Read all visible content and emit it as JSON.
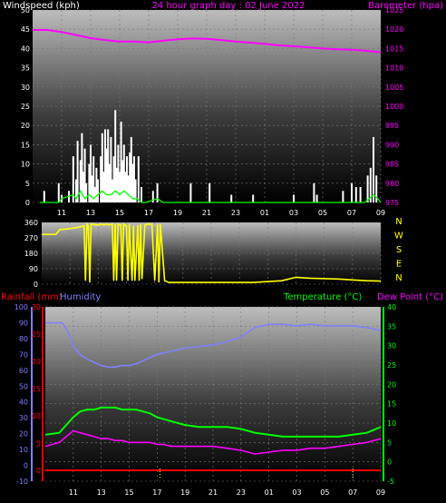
{
  "header": {
    "left_label": "Windspeed (kph)",
    "title": "24 hour graph day : 02 June 2022",
    "right_label": "Barometer (hpa)"
  },
  "colors": {
    "wind": "#ffffff",
    "gust": "#00ff00",
    "barometer": "#ff00ff",
    "direction": "#ffff00",
    "humidity": "#8080ff",
    "temperature": "#00ff00",
    "dewpoint": "#ff00ff",
    "rain": "#ff0000",
    "title": "#ff00ff",
    "axis_text": "#ffffff"
  },
  "chart_data": [
    {
      "type": "bar",
      "id": "wind-barometer",
      "title": "24 hour graph day : 02 June 2022",
      "ylabel": "Windspeed (kph)",
      "y2label": "Barometer (hpa)",
      "ylim": [
        0,
        50
      ],
      "y2lim": [
        975,
        1025
      ],
      "y_ticks": [
        "0",
        "5",
        "10",
        "15",
        "20",
        "25",
        "30",
        "35",
        "40",
        "45",
        "50"
      ],
      "y2_ticks": [
        "975",
        "980",
        "985",
        "990",
        "995",
        "1000",
        "1005",
        "1010",
        "1015",
        "1020",
        "1025"
      ],
      "x_ticks": [
        "11",
        "13",
        "15",
        "17",
        "19",
        "21",
        "23",
        "01",
        "03",
        "05",
        "07",
        "09"
      ],
      "grid": true,
      "wind_bars": [
        [
          9.8,
          3
        ],
        [
          10.8,
          5
        ],
        [
          11.0,
          2
        ],
        [
          11.5,
          3
        ],
        [
          11.8,
          12
        ],
        [
          12.0,
          6
        ],
        [
          12.1,
          16
        ],
        [
          12.3,
          11
        ],
        [
          12.4,
          18
        ],
        [
          12.5,
          8
        ],
        [
          12.6,
          14
        ],
        [
          12.7,
          5
        ],
        [
          12.9,
          10
        ],
        [
          13.0,
          15
        ],
        [
          13.1,
          7
        ],
        [
          13.2,
          12
        ],
        [
          13.3,
          4
        ],
        [
          13.4,
          9
        ],
        [
          13.5,
          6
        ],
        [
          13.7,
          12
        ],
        [
          13.8,
          18
        ],
        [
          13.9,
          8
        ],
        [
          14.0,
          19
        ],
        [
          14.1,
          14
        ],
        [
          14.2,
          19
        ],
        [
          14.3,
          10
        ],
        [
          14.4,
          17
        ],
        [
          14.5,
          6
        ],
        [
          14.6,
          12
        ],
        [
          14.7,
          24
        ],
        [
          14.8,
          9
        ],
        [
          14.9,
          15
        ],
        [
          15.0,
          8
        ],
        [
          15.1,
          21
        ],
        [
          15.2,
          11
        ],
        [
          15.3,
          15
        ],
        [
          15.4,
          8
        ],
        [
          15.5,
          12
        ],
        [
          15.6,
          7
        ],
        [
          15.7,
          13
        ],
        [
          15.8,
          17
        ],
        [
          15.9,
          10
        ],
        [
          16.0,
          12
        ],
        [
          16.1,
          6
        ],
        [
          16.3,
          12
        ],
        [
          16.5,
          4
        ],
        [
          17.3,
          3
        ],
        [
          17.6,
          5
        ],
        [
          19.9,
          5
        ],
        [
          21.2,
          5
        ],
        [
          22.7,
          2
        ],
        [
          24.2,
          2
        ],
        [
          27.0,
          2
        ],
        [
          28.4,
          5
        ],
        [
          28.6,
          2
        ],
        [
          30.4,
          3
        ],
        [
          31.0,
          5
        ],
        [
          31.3,
          4
        ],
        [
          31.6,
          4
        ],
        [
          32.1,
          7
        ],
        [
          32.3,
          9
        ],
        [
          32.5,
          17
        ],
        [
          32.7,
          7
        ]
      ],
      "gust_line": {
        "x": [
          9.5,
          10.8,
          11.0,
          11.8,
          12.0,
          12.3,
          12.6,
          12.9,
          13.2,
          13.5,
          13.8,
          14.1,
          14.4,
          14.7,
          15.0,
          15.3,
          15.6,
          15.9,
          16.2,
          16.5,
          16.8,
          17.6,
          18.0,
          31.9,
          32.2,
          32.5,
          32.8,
          33.0
        ],
        "y": [
          0,
          0,
          1,
          2,
          1,
          3,
          1,
          2,
          1,
          2,
          3,
          2,
          2,
          3,
          2,
          3,
          2,
          1,
          1,
          0,
          0,
          1,
          0,
          0,
          1,
          2,
          1,
          0
        ]
      },
      "barometer_line": {
        "x": [
          9.0,
          10.0,
          11.0,
          12.0,
          13.0,
          14.0,
          15.0,
          16.0,
          17.0,
          18.0,
          19.0,
          20.0,
          21.0,
          22.0,
          23.0,
          24.0,
          25.0,
          26.0,
          27.0,
          28.0,
          29.0,
          30.0,
          31.0,
          32.0,
          33.0
        ],
        "y": [
          1019.8,
          1019.8,
          1019.3,
          1018.5,
          1017.7,
          1017.2,
          1016.8,
          1016.8,
          1016.6,
          1017.0,
          1017.4,
          1017.6,
          1017.5,
          1017.2,
          1016.8,
          1016.5,
          1016.2,
          1015.8,
          1015.6,
          1015.3,
          1015.0,
          1014.8,
          1014.7,
          1014.4,
          1014.0
        ]
      }
    },
    {
      "type": "line",
      "id": "wind-direction",
      "y_ticks": [
        "0",
        "90",
        "180",
        "270",
        "360"
      ],
      "ylim": [
        0,
        360
      ],
      "y2_ticks": [
        "N",
        "W",
        "S",
        "E",
        "N"
      ],
      "x_ticks": [
        "11",
        "13",
        "15",
        "17",
        "19",
        "21",
        "23",
        "01",
        "03",
        "05",
        "07",
        "09"
      ],
      "grid": true,
      "direction_line": {
        "x": [
          9.0,
          10.0,
          10.3,
          10.6,
          11.5,
          12.0,
          12.1,
          12.2,
          12.3,
          12.4,
          12.5,
          12.6,
          12.8,
          13.0,
          13.2,
          13.4,
          13.6,
          13.8,
          14.0,
          14.1,
          14.2,
          14.3,
          14.4,
          14.6,
          14.7,
          14.8,
          15.0,
          15.1,
          15.2,
          15.4,
          15.5,
          15.6,
          15.8,
          15.9,
          16.0,
          16.1,
          16.3,
          16.5,
          16.8,
          17.0,
          17.2,
          17.3,
          17.4,
          17.7,
          18.0,
          20.0,
          22.0,
          24.0,
          26.0,
          27.0,
          28.0,
          30.0,
          31.0,
          32.0,
          33.0
        ],
        "y": [
          290,
          290,
          320,
          320,
          330,
          340,
          20,
          350,
          340,
          10,
          350,
          350,
          345,
          345,
          350,
          345,
          350,
          345,
          350,
          20,
          350,
          20,
          350,
          345,
          20,
          350,
          340,
          20,
          350,
          20,
          340,
          20,
          345,
          20,
          350,
          30,
          345,
          350,
          350,
          20,
          350,
          10,
          350,
          20,
          10,
          10,
          10,
          10,
          20,
          40,
          35,
          30,
          25,
          20,
          18
        ]
      }
    },
    {
      "type": "line",
      "id": "temp-humidity",
      "left_label": "Rainfall (mm)",
      "left2_label": "Humidity",
      "right_label": "Temperature (°C)",
      "right2_label": "Dew Point (°C)",
      "humidity_ticks": [
        "-10",
        "0",
        "10",
        "20",
        "30",
        "40",
        "50",
        "60",
        "70",
        "80",
        "90",
        "100"
      ],
      "humidity_lim": [
        -10,
        100
      ],
      "rain_ticks": [
        "0",
        "5",
        "10",
        "15",
        "20",
        "25",
        "30"
      ],
      "rain_lim": [
        -2,
        30
      ],
      "temp_ticks": [
        "-5",
        "0",
        "5",
        "10",
        "15",
        "20",
        "25",
        "30",
        "35",
        "40"
      ],
      "temp_lim": [
        -5,
        40
      ],
      "x_ticks": [
        "11",
        "13",
        "15",
        "17",
        "19",
        "21",
        "23",
        "01",
        "03",
        "05",
        "07",
        "09"
      ],
      "grid": true,
      "humidity_line": {
        "x": [
          9.0,
          10.2,
          10.6,
          11.0,
          11.5,
          12.0,
          12.5,
          13.0,
          13.5,
          14.0,
          14.5,
          15.0,
          15.5,
          16.0,
          16.5,
          17.0,
          17.5,
          18.0,
          19.0,
          20.0,
          21.0,
          22.0,
          23.0,
          24.0,
          25.0,
          26.0,
          27.0,
          28.0,
          29.0,
          30.0,
          31.0,
          32.0,
          33.0
        ],
        "y": [
          90,
          90,
          85,
          75,
          70,
          67,
          65,
          63,
          62,
          62,
          63,
          63,
          64,
          66,
          68,
          70,
          71,
          72,
          74,
          75,
          76,
          78,
          81,
          87,
          89,
          89,
          88,
          89,
          88,
          88,
          88,
          87,
          85
        ]
      },
      "temperature_line": {
        "x": [
          9.0,
          10.0,
          10.5,
          11.0,
          11.5,
          12.0,
          12.5,
          13.0,
          13.5,
          14.0,
          14.5,
          15.0,
          15.5,
          16.0,
          16.5,
          17.0,
          17.5,
          18.0,
          19.0,
          20.0,
          21.0,
          22.0,
          23.0,
          24.0,
          25.0,
          26.0,
          27.0,
          28.0,
          29.0,
          30.0,
          31.0,
          32.0,
          33.0
        ],
        "y": [
          7,
          7.5,
          9.5,
          11.5,
          13,
          13.5,
          13.5,
          14,
          14,
          14,
          13.5,
          13.5,
          13.5,
          13,
          12.5,
          11.5,
          11,
          10.5,
          9.5,
          9,
          9,
          9,
          8.5,
          7.5,
          7,
          6.5,
          6.5,
          6.5,
          6.5,
          6.5,
          7,
          7.5,
          9
        ]
      },
      "dewpoint_line": {
        "x": [
          9.0,
          10.0,
          10.5,
          11.0,
          11.5,
          12.0,
          12.5,
          13.0,
          13.5,
          14.0,
          14.5,
          15.0,
          15.5,
          16.0,
          16.5,
          17.0,
          17.5,
          18.0,
          19.0,
          20.0,
          21.0,
          22.0,
          23.0,
          24.0,
          25.0,
          26.0,
          27.0,
          28.0,
          29.0,
          30.0,
          31.0,
          32.0,
          33.0
        ],
        "y": [
          4,
          5,
          6.5,
          8,
          7.5,
          7,
          6.5,
          6,
          6,
          5.5,
          5.5,
          5,
          5,
          5,
          5,
          4.5,
          4.5,
          4,
          4,
          4,
          4,
          3.5,
          3,
          2,
          2.5,
          3,
          3,
          3.5,
          3.5,
          4,
          4.5,
          5,
          6
        ]
      },
      "rain_line": {
        "x": [
          9.0,
          33.0
        ],
        "y": [
          0,
          0
        ]
      },
      "rain_markers_x": [
        17.2,
        31.0
      ]
    }
  ]
}
